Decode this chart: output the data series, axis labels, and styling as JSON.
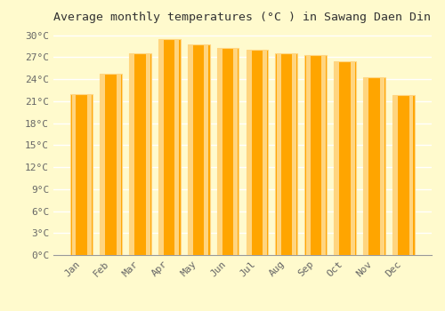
{
  "title": "Average monthly temperatures (°C ) in Sawang Daen Din",
  "months": [
    "Jan",
    "Feb",
    "Mar",
    "Apr",
    "May",
    "Jun",
    "Jul",
    "Aug",
    "Sep",
    "Oct",
    "Nov",
    "Dec"
  ],
  "values": [
    22.0,
    24.7,
    27.5,
    29.5,
    28.8,
    28.3,
    28.0,
    27.5,
    27.3,
    26.4,
    24.3,
    21.8
  ],
  "bar_color_main": "#FFA500",
  "bar_color_light": "#FFD580",
  "ylim": [
    0,
    31
  ],
  "yticks": [
    0,
    3,
    6,
    9,
    12,
    15,
    18,
    21,
    24,
    27,
    30
  ],
  "ytick_labels": [
    "0°C",
    "3°C",
    "6°C",
    "9°C",
    "12°C",
    "15°C",
    "18°C",
    "21°C",
    "24°C",
    "27°C",
    "30°C"
  ],
  "bg_color": "#FFFACD",
  "grid_color": "#FFFFFF",
  "title_fontsize": 9.5,
  "tick_fontsize": 8,
  "bar_width": 0.75
}
